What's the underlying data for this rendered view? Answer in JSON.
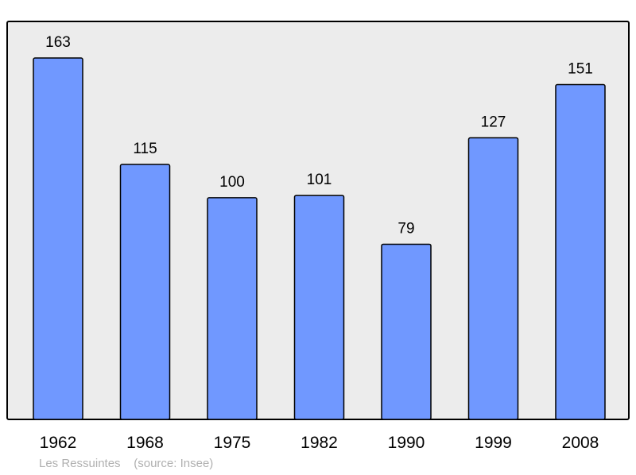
{
  "chart_data": {
    "type": "bar",
    "categories": [
      "1962",
      "1968",
      "1975",
      "1982",
      "1990",
      "1999",
      "2008"
    ],
    "values": [
      163,
      115,
      100,
      101,
      79,
      127,
      151
    ],
    "title": "",
    "xlabel": "",
    "ylabel": "",
    "ylim": [
      0,
      179.5
    ],
    "grid": false,
    "data_labels": true,
    "colors": {
      "bar": "#7098ff",
      "plot_background": "#ececec",
      "frame": "#000000"
    }
  },
  "footer": {
    "place": "Les Ressuintes",
    "source": "(source: Insee)"
  }
}
